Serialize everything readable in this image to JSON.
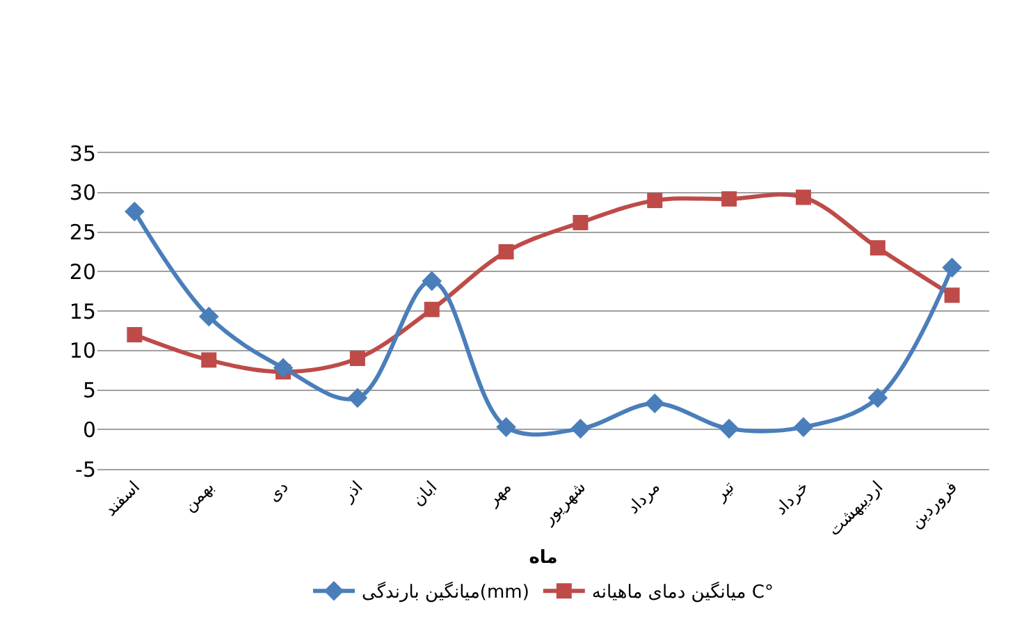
{
  "chart_data": {
    "type": "line",
    "xlabel": "ماه",
    "categories": [
      "اسفند",
      "بهمن",
      "دی",
      "اذر",
      "ابان",
      "مهر",
      "شهریور",
      "مرداد",
      "تیر",
      "خرداد",
      "اردیبهشت",
      "فروردین"
    ],
    "series": [
      {
        "name": "میانگین بارندگی(mm)",
        "color": "#4a7ebb",
        "marker": "diamond",
        "values": [
          27.6,
          14.3,
          7.8,
          4,
          18.8,
          0.3,
          0.1,
          3.3,
          0.1,
          0.3,
          4,
          20.5
        ]
      },
      {
        "name": "میانگین دمای ماهیانه C°",
        "color": "#be4b48",
        "marker": "square",
        "values": [
          12,
          8.8,
          7.3,
          9,
          15.2,
          22.5,
          26.2,
          29,
          29.2,
          29.4,
          23,
          17
        ]
      }
    ],
    "ylim": [
      -5,
      35
    ],
    "yticks": [
      -5,
      0,
      5,
      10,
      15,
      20,
      25,
      30,
      35
    ],
    "grid": "y",
    "legend": "bottom",
    "line_style": "solid"
  }
}
